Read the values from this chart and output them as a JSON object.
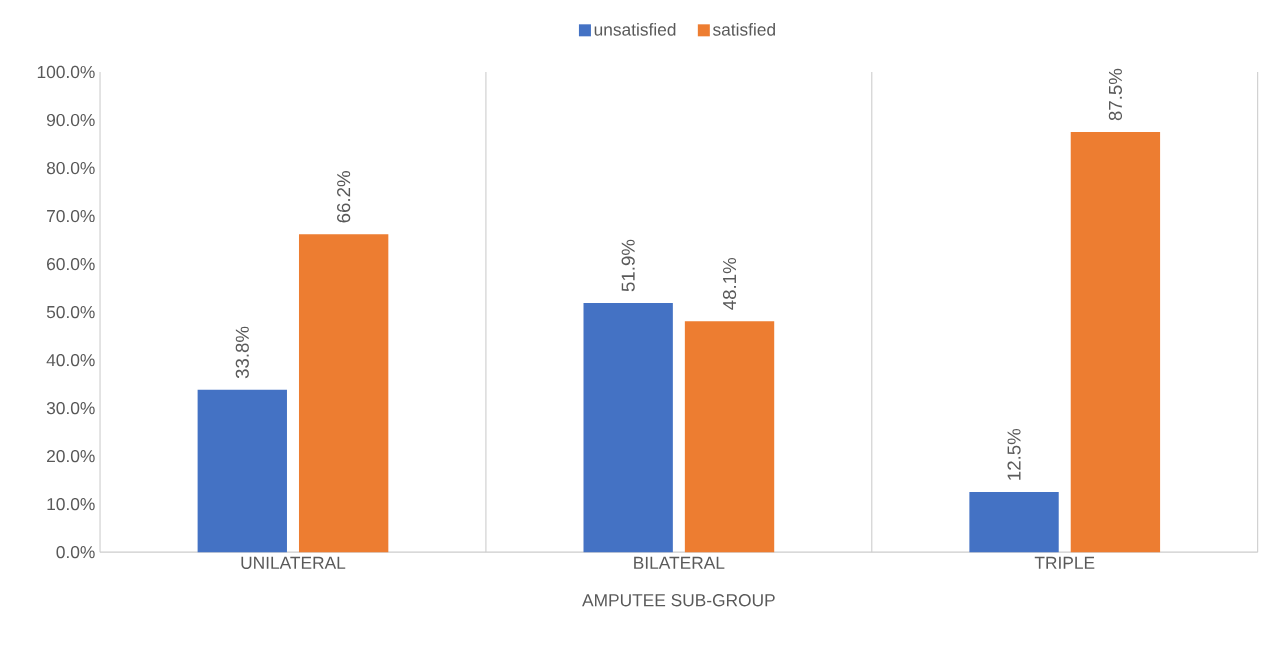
{
  "chart_data": {
    "type": "bar",
    "xlabel": "AMPUTEE SUB-GROUP",
    "categories": [
      "UNILATERAL",
      "BILATERAL",
      "TRIPLE"
    ],
    "series": [
      {
        "name": "unsatisfied",
        "color": "#4472c4",
        "values": [
          33.8,
          51.9,
          12.5
        ],
        "value_labels": [
          "33.8%",
          "51.9%",
          "12.5%"
        ]
      },
      {
        "name": "satisfied",
        "color": "#ed7d31",
        "values": [
          66.2,
          48.1,
          87.5
        ],
        "value_labels": [
          "66.2%",
          "48.1%",
          "87.5%"
        ]
      }
    ],
    "ylim": [
      0,
      100
    ],
    "yticks": [
      {
        "value": 0,
        "label": "0.0%"
      },
      {
        "value": 10,
        "label": "10.0%"
      },
      {
        "value": 20,
        "label": "20.0%"
      },
      {
        "value": 30,
        "label": "30.0%"
      },
      {
        "value": 40,
        "label": "40.0%"
      },
      {
        "value": 50,
        "label": "50.0%"
      },
      {
        "value": 60,
        "label": "60.0%"
      },
      {
        "value": 70,
        "label": "70.0%"
      },
      {
        "value": 80,
        "label": "80.0%"
      },
      {
        "value": 90,
        "label": "90.0%"
      },
      {
        "value": 100,
        "label": "100.0%"
      }
    ],
    "grid": "x",
    "legend": "top"
  }
}
